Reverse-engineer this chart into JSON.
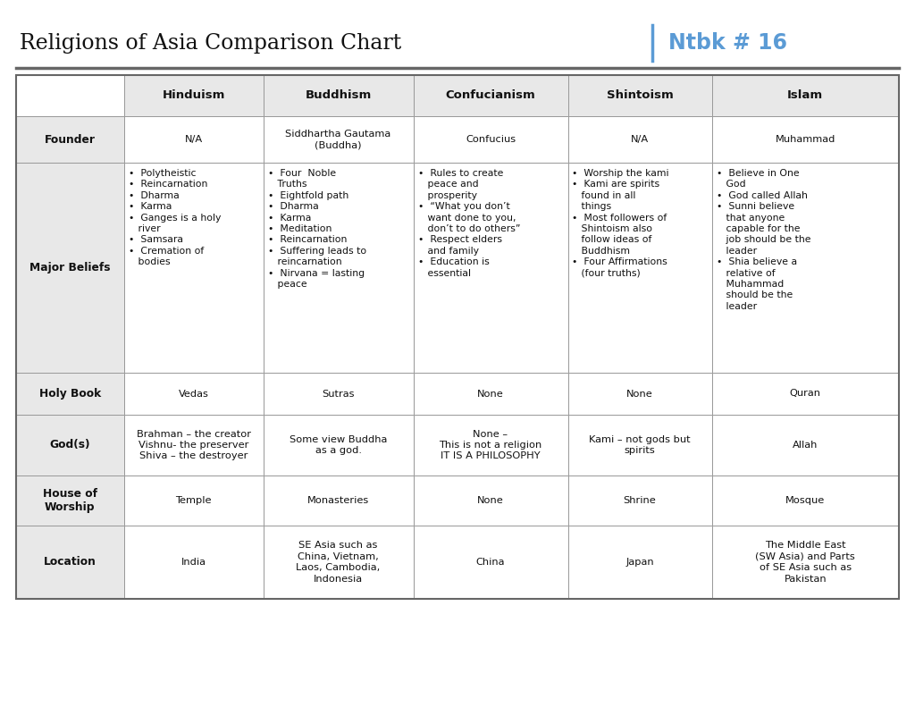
{
  "title": "Religions of Asia Comparison Chart",
  "notebook_label": "Ntbk # 16",
  "background_color": "#ffffff",
  "header_line_color": "#666666",
  "grid_line_color": "#999999",
  "blue_color": "#5b9bd5",
  "text_color": "#111111",
  "header_bg": "#e8e8e8",
  "cell_bg": "#ffffff",
  "columns": [
    "",
    "Hinduism",
    "Buddhism",
    "Confucianism",
    "Shintoism",
    "Islam"
  ],
  "rows": [
    {
      "label": "Founder",
      "cells": [
        "N/A",
        "Siddhartha Gautama\n(Buddha)",
        "Confucius",
        "N/A",
        "Muhammad"
      ],
      "bullet": [
        false,
        false,
        false,
        false,
        false
      ]
    },
    {
      "label": "Major Beliefs",
      "cells": [
        "•  Polytheistic\n•  Reincarnation\n•  Dharma\n•  Karma\n•  Ganges is a holy\n   river\n•  Samsara\n•  Cremation of\n   bodies",
        "•  Four  Noble\n   Truths\n•  Eightfold path\n•  Dharma\n•  Karma\n•  Meditation\n•  Reincarnation\n•  Suffering leads to\n   reincarnation\n•  Nirvana = lasting\n   peace",
        "•  Rules to create\n   peace and\n   prosperity\n•  “What you don’t\n   want done to you,\n   don’t to do others”\n•  Respect elders\n   and family\n•  Education is\n   essential",
        "•  Worship the kami\n•  Kami are spirits\n   found in all\n   things\n•  Most followers of\n   Shintoism also\n   follow ideas of\n   Buddhism\n•  Four Affirmations\n   (four truths)",
        "•  Believe in One\n   God\n•  God called Allah\n•  Sunni believe\n   that anyone\n   capable for the\n   job should be the\n   leader\n•  Shia believe a\n   relative of\n   Muhammad\n   should be the\n   leader"
      ],
      "bullet": [
        true,
        true,
        true,
        true,
        true
      ]
    },
    {
      "label": "Holy Book",
      "cells": [
        "Vedas",
        "Sutras",
        "None",
        "None",
        "Quran"
      ],
      "bullet": [
        false,
        false,
        false,
        false,
        false
      ]
    },
    {
      "label": "God(s)",
      "cells": [
        "Brahman – the creator\nVishnu- the preserver\nShiva – the destroyer",
        "Some view Buddha\nas a god.",
        "None –\nThis is not a religion\nIT IS A PHILOSOPHY",
        "Kami – not gods but\nspirits",
        "Allah"
      ],
      "bullet": [
        false,
        false,
        false,
        false,
        false
      ]
    },
    {
      "label": "House of\nWorship",
      "cells": [
        "Temple",
        "Monasteries",
        "None",
        "Shrine",
        "Mosque"
      ],
      "bullet": [
        false,
        false,
        false,
        false,
        false
      ]
    },
    {
      "label": "Location",
      "cells": [
        "India",
        "SE Asia such as\nChina, Vietnam,\nLaos, Cambodia,\nIndonesia",
        "China",
        "Japan",
        "The Middle East\n(SW Asia) and Parts\nof SE Asia such as\nPakistan"
      ],
      "bullet": [
        false,
        false,
        false,
        false,
        false
      ]
    }
  ],
  "title_fontsize": 17,
  "notebook_fontsize": 17,
  "header_fontsize": 9.5,
  "label_fontsize": 8.8,
  "cell_fontsize": 8.2,
  "bullet_fontsize": 7.8
}
